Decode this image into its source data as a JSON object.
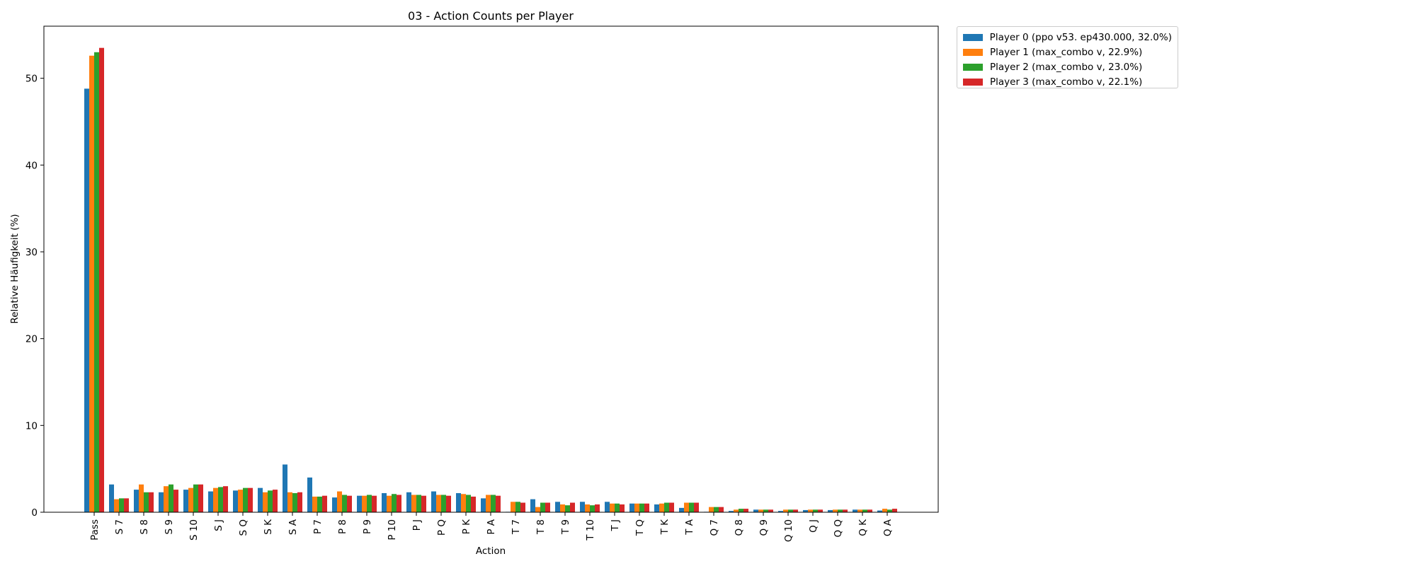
{
  "chart_data": {
    "type": "bar",
    "title": "03 - Action Counts per Player",
    "xlabel": "Action",
    "ylabel": "Relative Häufigkeit (%)",
    "ylim": [
      0,
      56
    ],
    "yticks": [
      0,
      10,
      20,
      30,
      40,
      50
    ],
    "legend_position": "outside-top-right",
    "grid": false,
    "categories": [
      "Pass",
      "S 7",
      "S 8",
      "S 9",
      "S 10",
      "S J",
      "S Q",
      "S K",
      "S A",
      "P 7",
      "P 8",
      "P 9",
      "P 10",
      "P J",
      "P Q",
      "P K",
      "P A",
      "T 7",
      "T 8",
      "T 9",
      "T 10",
      "T J",
      "T Q",
      "T K",
      "T A",
      "Q 7",
      "Q 8",
      "Q 9",
      "Q 10",
      "Q J",
      "Q Q",
      "Q K",
      "Q A"
    ],
    "series": [
      {
        "name": "Player 0 (ppo v53. ep430.000, 32.0%)",
        "color": "#1f77b4",
        "values": [
          48.8,
          3.2,
          2.6,
          2.3,
          2.6,
          2.4,
          2.5,
          2.8,
          5.5,
          4.0,
          1.7,
          1.9,
          2.2,
          2.3,
          2.4,
          2.2,
          1.6,
          0.05,
          1.5,
          1.2,
          1.2,
          1.2,
          1.0,
          0.9,
          0.5,
          0.05,
          0.15,
          0.3,
          0.15,
          0.25,
          0.25,
          0.3,
          0.2
        ]
      },
      {
        "name": "Player 1 (max_combo v, 22.9%)",
        "color": "#ff7f0e",
        "values": [
          52.6,
          1.5,
          3.2,
          3.0,
          2.8,
          2.8,
          2.6,
          2.3,
          2.3,
          1.8,
          2.4,
          1.9,
          1.9,
          2.0,
          2.0,
          2.1,
          2.0,
          1.2,
          0.6,
          0.9,
          0.9,
          1.0,
          1.0,
          1.0,
          1.1,
          0.6,
          0.3,
          0.3,
          0.3,
          0.3,
          0.3,
          0.3,
          0.4
        ]
      },
      {
        "name": "Player 2 (max_combo v, 23.0%)",
        "color": "#2ca02c",
        "values": [
          53.0,
          1.6,
          2.3,
          3.2,
          3.2,
          2.9,
          2.8,
          2.5,
          2.2,
          1.8,
          2.0,
          2.0,
          2.1,
          2.0,
          2.0,
          2.0,
          2.0,
          1.2,
          1.1,
          0.8,
          0.8,
          1.0,
          1.0,
          1.1,
          1.1,
          0.6,
          0.4,
          0.3,
          0.3,
          0.3,
          0.3,
          0.3,
          0.3
        ]
      },
      {
        "name": "Player 3 (max_combo v, 22.1%)",
        "color": "#d62728",
        "values": [
          53.5,
          1.6,
          2.3,
          2.6,
          3.2,
          3.0,
          2.8,
          2.6,
          2.3,
          1.9,
          1.9,
          1.9,
          2.0,
          1.9,
          1.9,
          1.8,
          1.9,
          1.1,
          1.1,
          1.1,
          0.9,
          0.9,
          1.0,
          1.1,
          1.1,
          0.6,
          0.4,
          0.3,
          0.3,
          0.3,
          0.3,
          0.3,
          0.4
        ]
      }
    ]
  }
}
